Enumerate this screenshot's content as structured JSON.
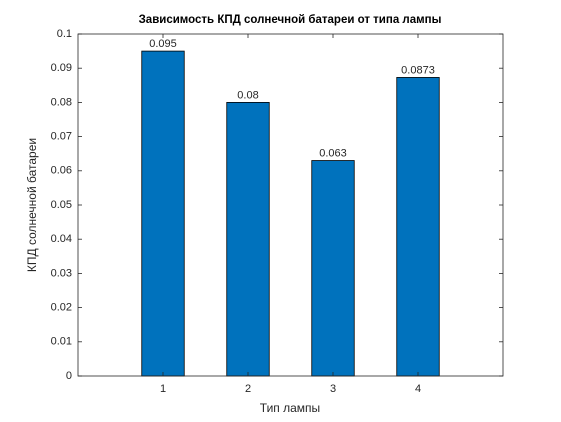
{
  "chart_data": {
    "type": "bar",
    "title": "Зависимость КПД солнечной батареи от типа лампы",
    "xlabel": "Тип лампы",
    "ylabel": "КПД солнечной батареи",
    "x": [
      1,
      2,
      3,
      4
    ],
    "values": [
      0.095,
      0.08,
      0.063,
      0.0873
    ],
    "color": "#0072bd",
    "xlim": [
      0,
      5
    ],
    "xticks": [
      1,
      2,
      3,
      4
    ],
    "ylim": [
      0,
      0.1
    ],
    "yticks": [
      0,
      0.01,
      0.02,
      0.03,
      0.04,
      0.05,
      0.06,
      0.07,
      0.08,
      0.09,
      0.1
    ],
    "grid": false
  }
}
